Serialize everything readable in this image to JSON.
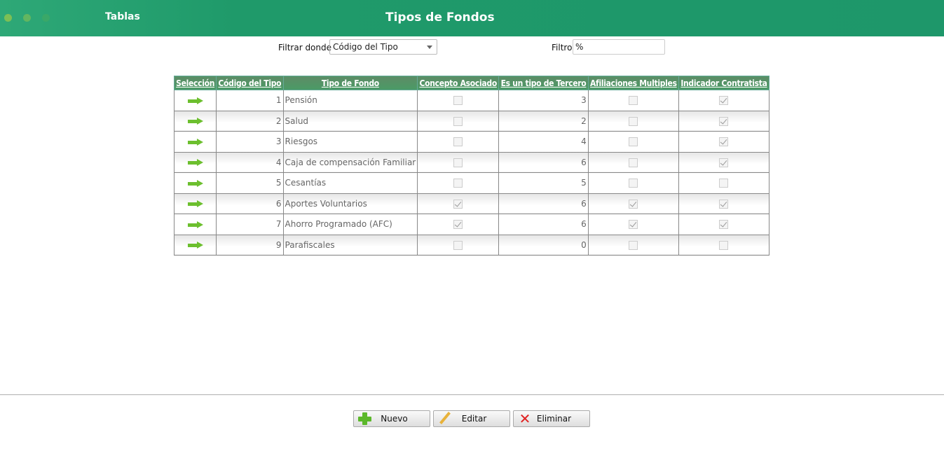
{
  "header": {
    "app": "Tablas",
    "title": "Tipos de Fondos"
  },
  "filter": {
    "label": "Filtrar donde",
    "field": "Código del Tipo",
    "filter_label": "Filtro",
    "filter_value": "%"
  },
  "table": {
    "columns": [
      "Selección",
      "Código del Tipo",
      "Tipo de Fondo",
      "Concepto Asociado",
      "Es un tipo de Tercero",
      "Afiliaciones Multiples",
      "Indicador Contratista"
    ],
    "rows": [
      {
        "codigo": "1",
        "tipo": "Pensión",
        "concepto": false,
        "tercero": "3",
        "afiliaciones": false,
        "contratista": true
      },
      {
        "codigo": "2",
        "tipo": "Salud",
        "concepto": false,
        "tercero": "2",
        "afiliaciones": false,
        "contratista": true
      },
      {
        "codigo": "3",
        "tipo": "Riesgos",
        "concepto": false,
        "tercero": "4",
        "afiliaciones": false,
        "contratista": true
      },
      {
        "codigo": "4",
        "tipo": "Caja de compensación Familiar",
        "concepto": false,
        "tercero": "6",
        "afiliaciones": false,
        "contratista": true
      },
      {
        "codigo": "5",
        "tipo": "Cesantías",
        "concepto": false,
        "tercero": "5",
        "afiliaciones": false,
        "contratista": false
      },
      {
        "codigo": "6",
        "tipo": "Aportes Voluntarios",
        "concepto": true,
        "tercero": "6",
        "afiliaciones": true,
        "contratista": true
      },
      {
        "codigo": "7",
        "tipo": "Ahorro Programado (AFC)",
        "concepto": true,
        "tercero": "6",
        "afiliaciones": true,
        "contratista": true
      },
      {
        "codigo": "9",
        "tipo": "Parafiscales",
        "concepto": false,
        "tercero": "0",
        "afiliaciones": false,
        "contratista": false
      }
    ]
  },
  "buttons": {
    "new": "Nuevo",
    "edit": "Editar",
    "delete": "Eliminar"
  },
  "colors": {
    "header": "#1e976a",
    "select_arrow": "#6cbf2e"
  }
}
